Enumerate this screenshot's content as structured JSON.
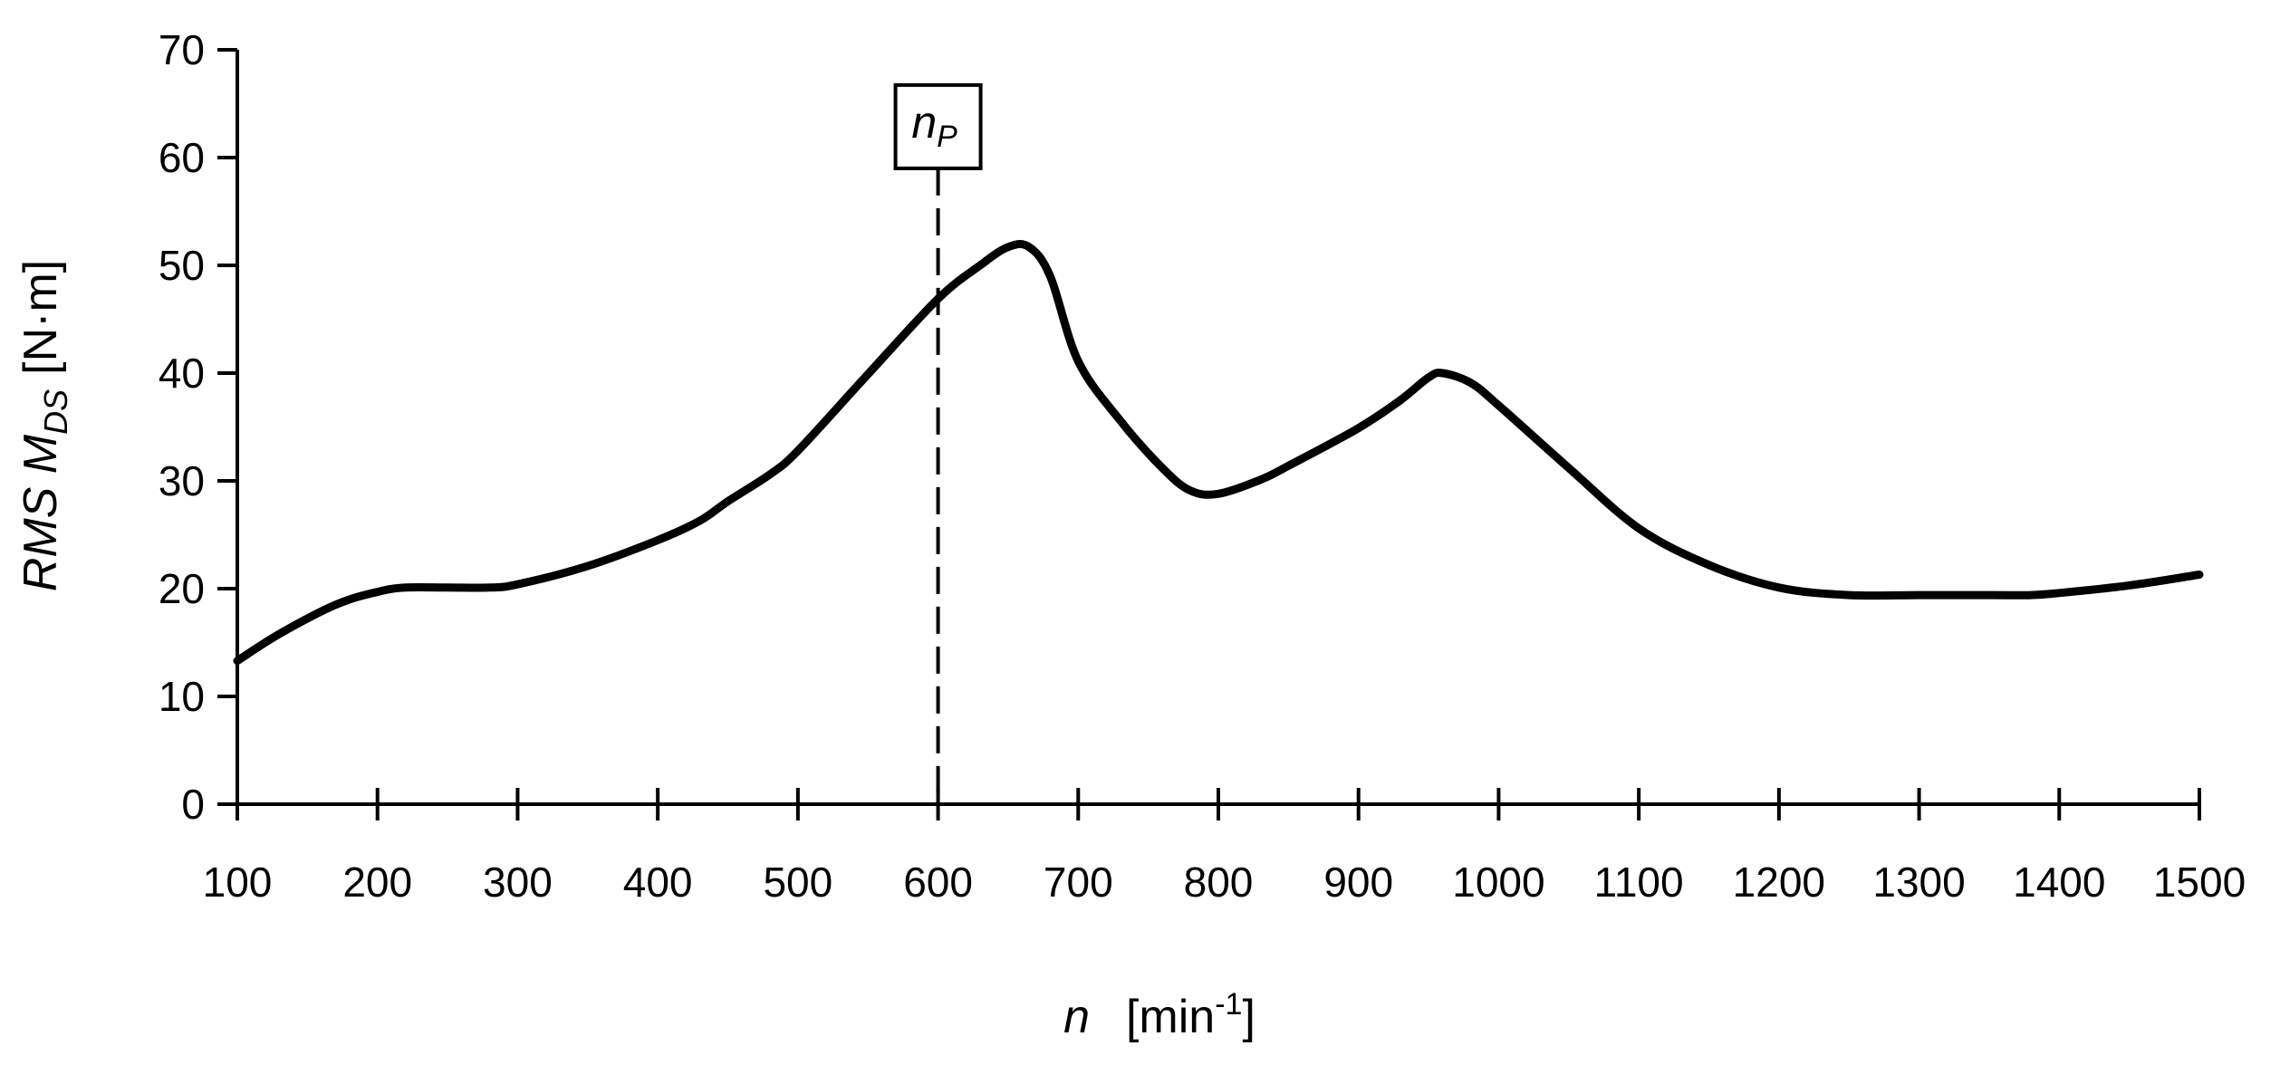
{
  "chart_data": {
    "type": "line",
    "xlabel": {
      "main": "n",
      "unit_open": "[min",
      "unit_exp": "-1",
      "unit_close": "]"
    },
    "ylabel": {
      "prefix": "RMS M",
      "sub": "DS",
      "unit": "[N·m]"
    },
    "xlim": [
      100,
      1500
    ],
    "ylim": [
      0,
      70
    ],
    "xticks": [
      100,
      200,
      300,
      400,
      500,
      600,
      700,
      800,
      900,
      1000,
      1100,
      1200,
      1300,
      1400,
      1500
    ],
    "yticks": [
      0,
      10,
      20,
      30,
      40,
      50,
      60,
      70
    ],
    "grid": false,
    "series": [
      {
        "x": [
          100,
          130,
          170,
          200,
          220,
          250,
          280,
          300,
          350,
          400,
          430,
          450,
          480,
          500,
          550,
          600,
          630,
          650,
          665,
          680,
          700,
          730,
          760,
          780,
          800,
          830,
          850,
          900,
          930,
          950,
          960,
          980,
          1000,
          1050,
          1100,
          1150,
          1200,
          1250,
          1300,
          1350,
          1380,
          1400,
          1450,
          1500
        ],
        "y": [
          13.3,
          15.8,
          18.5,
          19.7,
          20.1,
          20.1,
          20.1,
          20.4,
          22.1,
          24.5,
          26.3,
          28.1,
          30.6,
          32.8,
          39.9,
          46.9,
          50.0,
          51.7,
          51.7,
          49.0,
          41.1,
          35.6,
          31.2,
          29.1,
          28.8,
          30.1,
          31.4,
          34.9,
          37.5,
          39.6,
          40.0,
          39.1,
          37.0,
          31.2,
          25.6,
          22.2,
          20.1,
          19.4,
          19.4,
          19.4,
          19.4,
          19.6,
          20.3,
          21.3
        ]
      }
    ],
    "annotations": [
      {
        "type": "vline",
        "x": 600,
        "y_top": 59,
        "style": "dashed",
        "label_main": "n",
        "label_sub": "P"
      }
    ]
  }
}
